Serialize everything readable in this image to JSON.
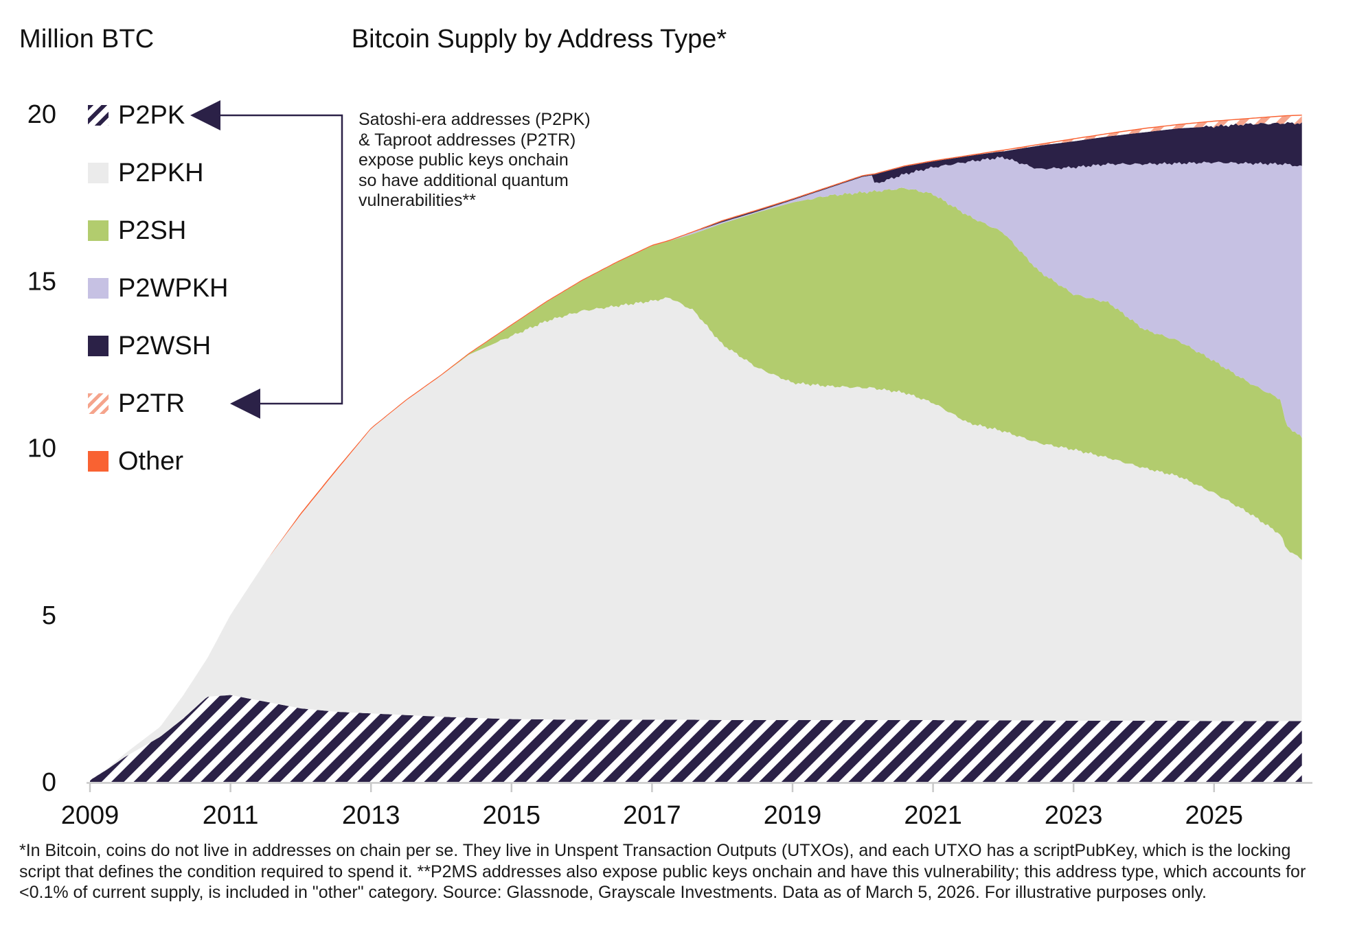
{
  "annotation": {
    "text": "Satoshi-era addresses (P2PK)\n& Taproot addresses (P2TR)\nexpose public keys onchain\nso have additional quantum\nvulnerabilities**"
  },
  "footnote": {
    "text": "*In Bitcoin, coins do not live in addresses on chain per se. They live in Unspent Transaction Outputs (UTXOs), and each UTXO has a scriptPubKey, which is the locking script that defines the condition required to spend it. **P2MS addresses also expose public keys onchain and have this vulnerability; this address type, which accounts for <0.1% of current supply, is included in \"other\" category. Source: Glassnode, Grayscale Investments. Data as of March 5, 2026. For illustrative purposes only."
  },
  "chart_data": {
    "type": "area",
    "stacked": true,
    "title": "Bitcoin Supply by Address Type*",
    "ylabel": "Million BTC",
    "xlabel": "",
    "ylim": [
      0,
      20
    ],
    "xlim": [
      2009,
      2026.25
    ],
    "grid": false,
    "legend_position": "left",
    "y_ticks": [
      0,
      5,
      10,
      15,
      20
    ],
    "x_ticks": [
      2009,
      2011,
      2013,
      2015,
      2017,
      2019,
      2021,
      2023,
      2025
    ],
    "axis_color": "#c9c9c9",
    "x": [
      2009,
      2009.25,
      2009.5,
      2009.75,
      2010,
      2010.33,
      2010.67,
      2011,
      2011.25,
      2011.5,
      2012,
      2012.5,
      2013,
      2013.5,
      2014,
      2014.4,
      2015,
      2015.5,
      2016,
      2016.5,
      2017,
      2017.25,
      2017.6,
      2018,
      2018.5,
      2019,
      2019.5,
      2020,
      2020.13,
      2020.17,
      2020.6,
      2021,
      2021.5,
      2021.9,
      2022,
      2022.5,
      2023,
      2023.5,
      2024,
      2024.5,
      2025,
      2025.5,
      2025.95,
      2026.02,
      2026.25
    ],
    "series": [
      {
        "name": "P2PK",
        "color": "#2b2147",
        "fill": "hatch",
        "hatch_background": "#ffffff",
        "values": [
          0.05,
          0.38,
          0.75,
          1.05,
          1.35,
          1.9,
          2.55,
          2.6,
          2.5,
          2.4,
          2.2,
          2.1,
          2.05,
          2.0,
          1.95,
          1.92,
          1.88,
          1.87,
          1.86,
          1.86,
          1.86,
          1.86,
          1.86,
          1.85,
          1.85,
          1.85,
          1.85,
          1.85,
          1.85,
          1.85,
          1.85,
          1.85,
          1.84,
          1.84,
          1.84,
          1.84,
          1.83,
          1.83,
          1.83,
          1.83,
          1.82,
          1.82,
          1.82,
          1.82,
          1.82
        ]
      },
      {
        "name": "P2PKH",
        "color": "#ebebeb",
        "fill": "solid",
        "values": [
          0,
          0.02,
          0.1,
          0.2,
          0.3,
          0.7,
          1.15,
          2.4,
          3.3,
          4.2,
          5.8,
          7.2,
          8.52,
          9.42,
          10.22,
          10.88,
          11.47,
          11.93,
          12.24,
          12.39,
          12.54,
          12.64,
          12.24,
          11.25,
          10.55,
          10.1,
          10.0,
          9.95,
          9.95,
          9.93,
          9.8,
          9.5,
          8.91,
          8.71,
          8.66,
          8.31,
          8.12,
          7.87,
          7.57,
          7.32,
          6.83,
          6.23,
          5.58,
          5.18,
          4.83
        ]
      },
      {
        "name": "P2SH",
        "color": "#b2cc6e",
        "fill": "solid",
        "values": [
          0,
          0,
          0,
          0,
          0,
          0,
          0,
          0,
          0,
          0,
          0,
          0,
          0,
          0,
          0,
          0.02,
          0.32,
          0.57,
          0.9,
          1.3,
          1.65,
          1.7,
          2.32,
          3.62,
          4.65,
          5.4,
          5.7,
          5.85,
          5.87,
          5.9,
          6.13,
          6.25,
          6.2,
          6.0,
          5.95,
          5.15,
          4.65,
          4.65,
          4.15,
          4.05,
          3.95,
          3.9,
          4.05,
          3.7,
          3.65
        ]
      },
      {
        "name": "P2WPKH",
        "color": "#c6c1e3",
        "fill": "solid",
        "values": [
          0,
          0,
          0,
          0,
          0,
          0,
          0,
          0,
          0,
          0,
          0,
          0,
          0,
          0,
          0,
          0,
          0,
          0,
          0,
          0,
          0,
          0,
          0.05,
          0.04,
          0.03,
          0.07,
          0.22,
          0.47,
          0.49,
          0.22,
          0.42,
          0.8,
          1.62,
          2.13,
          2.25,
          3.05,
          3.8,
          4.15,
          4.95,
          5.32,
          5.95,
          6.57,
          7.05,
          7.8,
          8.12
        ]
      },
      {
        "name": "P2WSH",
        "color": "#2b2147",
        "fill": "solid",
        "values": [
          0,
          0,
          0,
          0,
          0,
          0,
          0,
          0,
          0,
          0,
          0,
          0,
          0,
          0,
          0,
          0,
          0,
          0,
          0,
          0,
          0,
          0,
          0,
          0.03,
          0.03,
          0.02,
          0.02,
          0.02,
          0.02,
          0.29,
          0.23,
          0.18,
          0.17,
          0.18,
          0.18,
          0.7,
          0.78,
          0.83,
          0.95,
          1.05,
          1.08,
          1.18,
          1.22,
          1.23,
          1.3
        ]
      },
      {
        "name": "P2TR",
        "color": "#f5a48c",
        "fill": "hatch",
        "hatch_background": "#ffffff",
        "values": [
          0,
          0,
          0,
          0,
          0,
          0,
          0,
          0,
          0,
          0,
          0,
          0,
          0,
          0,
          0,
          0,
          0,
          0,
          0,
          0,
          0,
          0,
          0,
          0,
          0,
          0,
          0,
          0,
          0,
          0,
          0,
          0,
          0,
          0.01,
          0.02,
          0.02,
          0.06,
          0.07,
          0.1,
          0.1,
          0.14,
          0.15,
          0.2,
          0.2,
          0.23
        ]
      },
      {
        "name": "Other",
        "color": "#f96232",
        "fill": "solid",
        "values": [
          0,
          0,
          0,
          0,
          0,
          0,
          0,
          0,
          0,
          0,
          0.05,
          0.05,
          0.03,
          0.03,
          0.03,
          0.03,
          0.03,
          0.03,
          0.03,
          0.03,
          0.03,
          0.03,
          0.03,
          0.03,
          0.03,
          0.03,
          0.03,
          0.03,
          0.03,
          0.03,
          0.03,
          0.03,
          0.03,
          0.03,
          0.03,
          0.03,
          0.03,
          0.03,
          0.03,
          0.03,
          0.03,
          0.03,
          0.03,
          0.03,
          0.03
        ]
      }
    ]
  }
}
